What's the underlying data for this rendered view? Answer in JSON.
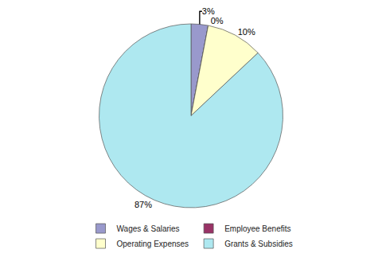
{
  "chart_data": {
    "type": "pie",
    "categories": [
      "Wages & Salaries",
      "Employee Benefits",
      "Operating Expenses",
      "Grants & Subsidies"
    ],
    "values": [
      3,
      0,
      10,
      87
    ],
    "value_labels": [
      "3%",
      "0%",
      "10%",
      "87%"
    ],
    "colors": [
      "#9999cc",
      "#993366",
      "#ffffcc",
      "#aee8f0"
    ],
    "legend": "bottom"
  }
}
